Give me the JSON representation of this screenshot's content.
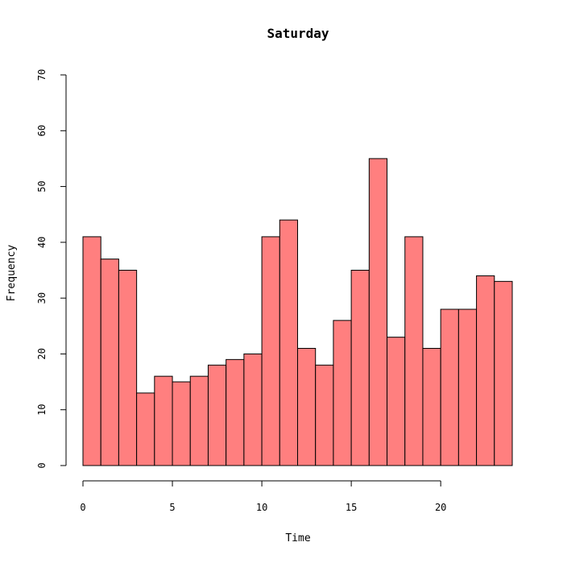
{
  "chart_data": {
    "type": "bar",
    "title": "Saturday",
    "xlabel": "Time",
    "ylabel": "Frequency",
    "bin_width": 1,
    "bins_start": [
      0,
      1,
      2,
      3,
      4,
      5,
      6,
      7,
      8,
      9,
      10,
      11,
      12,
      13,
      14,
      15,
      16,
      17,
      18,
      19,
      20,
      21,
      22,
      23
    ],
    "values": [
      41,
      37,
      35,
      13,
      16,
      15,
      16,
      18,
      19,
      20,
      41,
      44,
      21,
      18,
      26,
      35,
      55,
      23,
      41,
      21,
      28,
      28,
      34,
      33
    ],
    "xlim": [
      0,
      24
    ],
    "ylim": [
      0,
      70
    ],
    "x_ticks": [
      "0",
      "5",
      "10",
      "15",
      "20"
    ],
    "y_ticks": [
      "0",
      "10",
      "20",
      "30",
      "40",
      "50",
      "60",
      "70"
    ],
    "grid": false,
    "bar_color": "#ff7f7f",
    "bar_border_color": "#000000"
  }
}
